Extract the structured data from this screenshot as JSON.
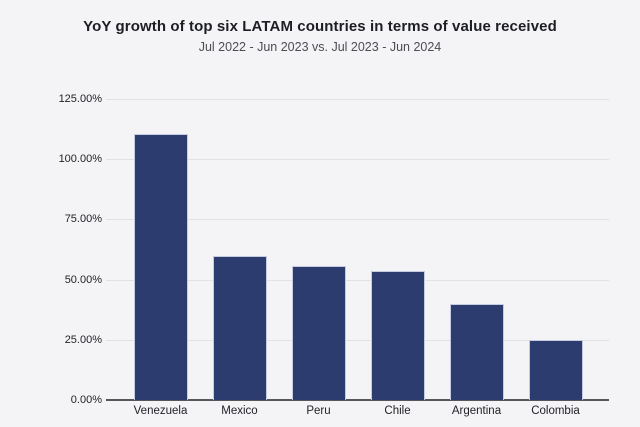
{
  "chart_data": {
    "type": "bar",
    "title": "YoY growth of top six LATAM countries in terms of value received",
    "subtitle": "Jul 2022 - Jun 2023 vs. Jul 2023 - Jun 2024",
    "categories": [
      "Venezuela",
      "Mexico",
      "Peru",
      "Chile",
      "Argentina",
      "Colombia"
    ],
    "values": [
      110.5,
      60,
      55.5,
      53.5,
      40,
      25
    ],
    "unit": "%",
    "xlabel": "",
    "ylabel": "",
    "ylim": [
      0,
      125
    ],
    "y_ticks": [
      0,
      25,
      50,
      75,
      100,
      125
    ],
    "y_tick_labels": [
      "0.00%",
      "25.00%",
      "50.00%",
      "75.00%",
      "100.00%",
      "125.00%"
    ],
    "grid": true,
    "legend": false,
    "colors": {
      "background": "#f4f4f6",
      "bar_fill": "#2d3c6e",
      "bar_border": "#c5cce2",
      "gridline": "#e2e2e5",
      "axis_line": "#56575c",
      "title_text": "#1d1e23",
      "subtitle_text": "#4b4d54",
      "tick_text": "#222328"
    }
  }
}
